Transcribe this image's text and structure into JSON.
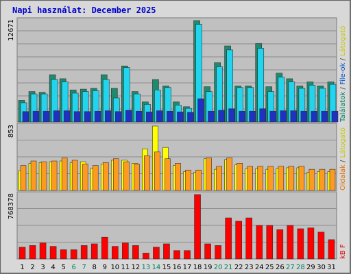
{
  "chart_data": {
    "type": "bar",
    "title": "Napi használat: December 2025",
    "categories": [
      "1",
      "2",
      "3",
      "4",
      "5",
      "6",
      "7",
      "8",
      "9",
      "10",
      "11",
      "12",
      "13",
      "14",
      "15",
      "16",
      "17",
      "18",
      "19",
      "20",
      "21",
      "22",
      "23",
      "24",
      "25",
      "26",
      "27",
      "28",
      "29",
      "30",
      "31"
    ],
    "weekend_days": [
      "6",
      "7",
      "13",
      "14",
      "20",
      "21",
      "27",
      "28"
    ],
    "panels": [
      {
        "id": "hits",
        "max_label": "12671",
        "ymax": 12671,
        "right_labels": [
          {
            "text": "Találatok",
            "color": "#008060"
          },
          {
            "text": " / ",
            "color": "#444444"
          },
          {
            "text": "File-ok",
            "color": "#0050c8"
          },
          {
            "text": " / ",
            "color": "#444444"
          },
          {
            "text": "Látogató",
            "color": "#c8c800"
          }
        ],
        "series": [
          {
            "name": "Találatok",
            "color": "#1e8a6e",
            "values": [
              2700,
              3800,
              3700,
              5900,
              5400,
              4000,
              4100,
              4200,
              5900,
              4200,
              7000,
              3800,
              2500,
              5300,
              4500,
              2500,
              1900,
              12671,
              4400,
              7400,
              9500,
              4500,
              4500,
              9800,
              4400,
              6100,
              5400,
              4500,
              5000,
              4500,
              5000
            ]
          },
          {
            "name": "File-ok",
            "color": "#22d4ee",
            "values": [
              2400,
              3500,
              3500,
              5300,
              5000,
              3600,
              3800,
              3900,
              5300,
              3000,
              6800,
              3500,
              2200,
              4000,
              4300,
              2100,
              1700,
              12200,
              3800,
              6900,
              9000,
              4300,
              4300,
              9200,
              3800,
              5600,
              5000,
              4200,
              4600,
              4200,
              4700
            ]
          },
          {
            "name": "Látogató",
            "color": "#2030c0",
            "values": [
              1300,
              1350,
              1350,
              1400,
              1400,
              1300,
              1300,
              1350,
              1400,
              1300,
              1450,
              1350,
              1250,
              1400,
              1350,
              1250,
              1200,
              2900,
              1350,
              1450,
              1650,
              1350,
              1350,
              1650,
              1350,
              1400,
              1400,
              1350,
              1350,
              1350,
              1350
            ]
          }
        ]
      },
      {
        "id": "pages",
        "max_label": "853",
        "ymax": 853,
        "right_labels": [
          {
            "text": "Oldalak",
            "color": "#e07000"
          },
          {
            "text": " / ",
            "color": "#444444"
          },
          {
            "text": "Látogató",
            "color": "#c8c800"
          }
        ],
        "series": [
          {
            "name": "Látogató",
            "color": "#ffff00",
            "values": [
              260,
              360,
              370,
              380,
              390,
              370,
              380,
              290,
              350,
              400,
              400,
              360,
              550,
              853,
              570,
              330,
              250,
              240,
              420,
              280,
              410,
              340,
              290,
              290,
              280,
              290,
              300,
              300,
              240,
              250,
              250
            ]
          },
          {
            "name": "Oldalak",
            "color": "#ff9a20",
            "values": [
              330,
              390,
              380,
              390,
              430,
              400,
              350,
              330,
              370,
              420,
              380,
              350,
              460,
              510,
              420,
              360,
              270,
              270,
              430,
              320,
              430,
              360,
              320,
              320,
              320,
              320,
              320,
              320,
              280,
              280,
              280
            ]
          }
        ]
      },
      {
        "id": "kb",
        "max_label": "768378",
        "ymax": 768378,
        "right_labels": [
          {
            "text": "kB F",
            "color": "#e00000"
          }
        ],
        "series": [
          {
            "name": "kB F",
            "color": "#ff0000",
            "values": [
              140000,
              160000,
              190000,
              150000,
              110000,
              110000,
              160000,
              180000,
              260000,
              150000,
              190000,
              160000,
              70000,
              140000,
              180000,
              100000,
              100000,
              768378,
              180000,
              160000,
              490000,
              450000,
              490000,
              400000,
              400000,
              350000,
              400000,
              360000,
              370000,
              320000,
              230000
            ]
          }
        ]
      }
    ]
  }
}
